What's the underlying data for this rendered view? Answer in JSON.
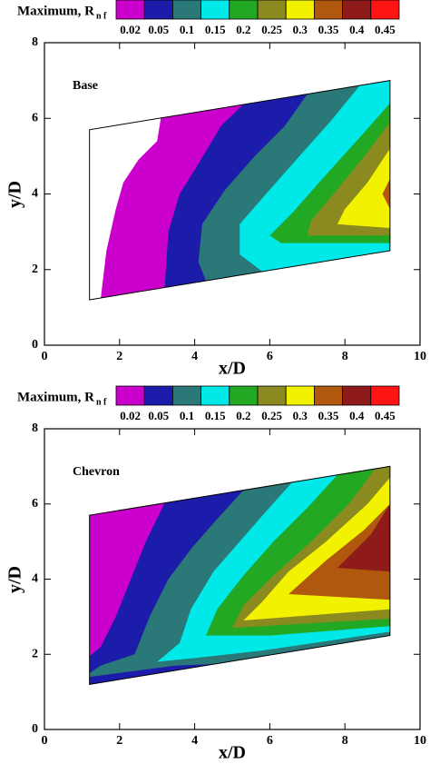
{
  "chart_data": [
    {
      "type": "contour",
      "legend_title": "Maximum, R",
      "legend_title_subscript": "n f",
      "levels": [
        0.02,
        0.05,
        0.1,
        0.15,
        0.2,
        0.25,
        0.3,
        0.35,
        0.4,
        0.45
      ],
      "colors": [
        "#cc00cc",
        "#1c1caa",
        "#2a7878",
        "#00e8e8",
        "#22a822",
        "#8a8a20",
        "#f2f200",
        "#b0580e",
        "#8e1a1a",
        "#ff1414"
      ],
      "annotation": "Base",
      "xlabel": "x/D",
      "ylabel": "y/D",
      "xlim": [
        0,
        10
      ],
      "ylim": [
        0,
        8
      ],
      "xticks": [
        0,
        2,
        4,
        6,
        8,
        10
      ],
      "yticks": [
        0,
        2,
        4,
        6,
        8
      ],
      "boundary": {
        "x": [
          1.2,
          9.2,
          9.2,
          1.2
        ],
        "y": [
          1.2,
          2.5,
          7.0,
          5.7
        ]
      },
      "regions": [
        {
          "level": 0.02,
          "x": [
            1.5,
            1.65,
            1.9,
            2.1,
            2.5,
            3.0,
            3.1,
            9.2,
            9.2
          ],
          "y": [
            1.25,
            2.5,
            3.6,
            4.3,
            4.9,
            5.4,
            6.01,
            7.0,
            2.5
          ]
        },
        {
          "level": 0.05,
          "x": [
            3.2,
            3.3,
            3.6,
            4.1,
            4.7,
            5.3,
            9.2,
            9.2
          ],
          "y": [
            1.53,
            3.0,
            4.0,
            4.8,
            5.8,
            6.37,
            7.0,
            2.5
          ]
        },
        {
          "level": 0.1,
          "x": [
            4.3,
            4.1,
            4.2,
            4.8,
            5.6,
            6.4,
            7.0,
            9.2,
            9.2
          ],
          "y": [
            1.7,
            2.2,
            3.2,
            4.1,
            5.0,
            5.8,
            6.64,
            7.0,
            2.5
          ]
        },
        {
          "level": 0.15,
          "x": [
            5.8,
            5.2,
            5.2,
            5.9,
            6.7,
            7.6,
            8.4,
            9.2,
            9.2
          ],
          "y": [
            1.95,
            2.4,
            3.2,
            4.0,
            4.9,
            5.9,
            6.87,
            7.0,
            2.5
          ]
        },
        {
          "level": 0.2,
          "x": [
            9.2,
            8.4,
            7.4,
            6.6,
            6.0,
            6.3,
            9.2
          ],
          "y": [
            6.4,
            5.5,
            4.4,
            3.5,
            2.9,
            2.7,
            2.7
          ]
        },
        {
          "level": 0.25,
          "x": [
            9.2,
            8.6,
            7.7,
            7.1,
            7.0,
            9.2
          ],
          "y": [
            5.9,
            5.1,
            4.0,
            3.3,
            2.9,
            2.9
          ]
        },
        {
          "level": 0.3,
          "x": [
            9.2,
            8.6,
            8.0,
            7.8,
            9.2
          ],
          "y": [
            5.2,
            4.3,
            3.6,
            3.2,
            3.1
          ]
        },
        {
          "level": 0.35,
          "x": [
            9.2,
            9.0,
            9.2
          ],
          "y": [
            4.4,
            4.0,
            3.6
          ]
        }
      ]
    },
    {
      "type": "contour",
      "legend_title": "Maximum, R",
      "legend_title_subscript": "n f",
      "levels": [
        0.02,
        0.05,
        0.1,
        0.15,
        0.2,
        0.25,
        0.3,
        0.35,
        0.4,
        0.45
      ],
      "colors": [
        "#cc00cc",
        "#1c1caa",
        "#2a7878",
        "#00e8e8",
        "#22a822",
        "#8a8a20",
        "#f2f200",
        "#b0580e",
        "#8e1a1a",
        "#ff1414"
      ],
      "annotation": "Chevron",
      "xlabel": "x/D",
      "ylabel": "y/D",
      "xlim": [
        0,
        10
      ],
      "ylim": [
        0,
        8
      ],
      "xticks": [
        0,
        2,
        4,
        6,
        8,
        10
      ],
      "yticks": [
        0,
        2,
        4,
        6,
        8
      ],
      "boundary": {
        "x": [
          1.2,
          9.2,
          9.2,
          1.2
        ],
        "y": [
          1.2,
          2.5,
          7.0,
          5.7
        ]
      },
      "regions": [
        {
          "level": 0.02,
          "x": [
            1.2,
            9.2,
            9.2,
            1.2
          ],
          "y": [
            1.2,
            2.5,
            7.0,
            5.7
          ]
        },
        {
          "level": 0.05,
          "x": [
            3.2,
            2.7,
            2.3,
            1.9,
            1.5,
            1.2,
            1.2,
            9.2,
            9.2
          ],
          "y": [
            6.02,
            5.0,
            4.0,
            3.0,
            2.2,
            1.95,
            1.2,
            2.5,
            7.0
          ]
        },
        {
          "level": 0.1,
          "x": [
            5.3,
            4.6,
            3.9,
            3.3,
            2.8,
            2.4,
            1.5,
            1.2,
            1.2,
            3.5,
            4.5,
            9.2,
            9.2
          ],
          "y": [
            6.37,
            5.6,
            4.8,
            4.0,
            3.0,
            2.0,
            1.7,
            1.5,
            1.4,
            1.7,
            1.74,
            2.5,
            7.0
          ]
        },
        {
          "level": 0.15,
          "x": [
            6.6,
            5.9,
            5.2,
            4.5,
            3.9,
            3.6,
            3.0,
            4.0,
            5.8,
            9.2,
            9.2
          ],
          "y": [
            6.58,
            5.8,
            5.0,
            4.2,
            3.2,
            2.3,
            1.8,
            1.9,
            2.1,
            2.6,
            7.0
          ]
        },
        {
          "level": 0.2,
          "x": [
            7.8,
            7.0,
            6.1,
            5.3,
            4.6,
            4.3,
            6.0,
            9.2,
            9.2
          ],
          "y": [
            6.77,
            5.9,
            5.0,
            4.1,
            3.2,
            2.5,
            2.5,
            2.75,
            7.0
          ]
        },
        {
          "level": 0.25,
          "x": [
            8.8,
            8.1,
            7.1,
            6.1,
            5.3,
            5.0,
            9.2,
            9.2
          ],
          "y": [
            6.93,
            6.0,
            5.0,
            4.1,
            3.3,
            2.7,
            2.95,
            7.0
          ]
        },
        {
          "level": 0.3,
          "x": [
            9.2,
            8.6,
            7.5,
            6.5,
            5.8,
            5.3,
            9.2
          ],
          "y": [
            6.7,
            6.0,
            5.0,
            4.2,
            3.4,
            2.9,
            3.2
          ]
        },
        {
          "level": 0.35,
          "x": [
            9.2,
            8.5,
            7.5,
            6.5,
            9.2
          ],
          "y": [
            6.0,
            5.3,
            4.5,
            3.6,
            3.45
          ]
        },
        {
          "level": 0.4,
          "x": [
            9.2,
            8.7,
            7.8,
            9.2
          ],
          "y": [
            6.0,
            5.2,
            4.3,
            4.2
          ]
        }
      ]
    }
  ]
}
